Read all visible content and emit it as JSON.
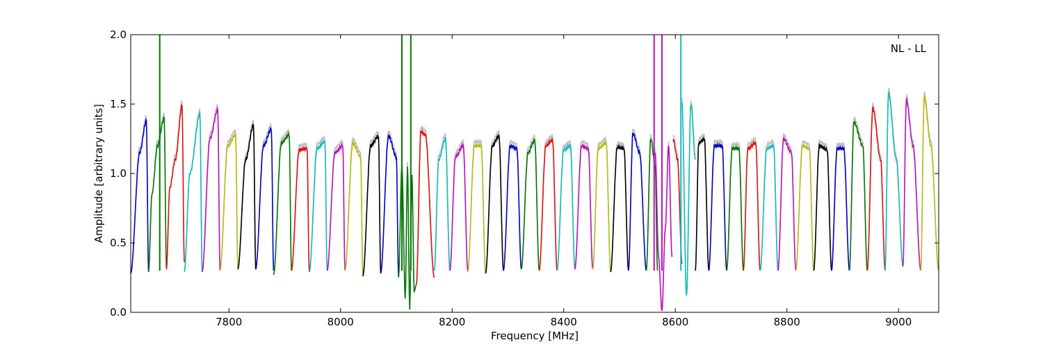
{
  "chart_data": {
    "type": "line",
    "title": "",
    "annotation": "NL - LL",
    "xlabel": "Frequency [MHz]",
    "ylabel": "Amplitude [arbitrary units]",
    "xlim": [
      7624,
      9072
    ],
    "ylim": [
      0.0,
      2.0
    ],
    "xticks": [
      7800,
      8000,
      8200,
      8400,
      8600,
      8800,
      9000
    ],
    "xtick_labels": [
      "7800",
      "8000",
      "8200",
      "8400",
      "8600",
      "8800",
      "9000"
    ],
    "yticks": [
      0.0,
      0.5,
      1.0,
      1.5,
      2.0
    ],
    "ytick_labels": [
      "0.0",
      "0.5",
      "1.0",
      "1.5",
      "2.0"
    ],
    "grid": false,
    "channel_width_mhz": 32,
    "band_start_mhz": 7624,
    "palette": [
      "#0000cc",
      "#007700",
      "#dd1111",
      "#11bbbb",
      "#bb11bb",
      "#bbbb11",
      "#000000"
    ],
    "background_color": "#c0c0c0",
    "series": [
      {
        "values": [
          [
            7624,
            0.28
          ],
          [
            7640,
            1.15
          ],
          [
            7652,
            1.38
          ],
          [
            7656,
            0.29
          ]
        ],
        "color": "#0000cc"
      },
      {
        "values": [
          [
            7656,
            0.29
          ],
          [
            7662,
            0.85
          ],
          [
            7672,
            1.2
          ],
          [
            7684,
            1.4
          ],
          [
            7688,
            0.31
          ]
        ],
        "color": "#007700"
      },
      {
        "values": [
          [
            7688,
            0.31
          ],
          [
            7694,
            0.9
          ],
          [
            7704,
            1.1
          ],
          [
            7716,
            1.49
          ],
          [
            7720,
            0.36
          ]
        ],
        "color": "#dd1111"
      },
      {
        "values": [
          [
            7720,
            0.29
          ],
          [
            7730,
            1.0
          ],
          [
            7748,
            1.43
          ],
          [
            7752,
            0.29
          ]
        ],
        "color": "#11bbbb"
      },
      {
        "values": [
          [
            7752,
            0.29
          ],
          [
            7766,
            1.25
          ],
          [
            7780,
            1.46
          ],
          [
            7784,
            0.3
          ]
        ],
        "color": "#bb11bb"
      },
      {
        "values": [
          [
            7784,
            0.3
          ],
          [
            7798,
            1.2
          ],
          [
            7812,
            1.28
          ],
          [
            7816,
            0.31
          ]
        ],
        "color": "#bbbb11"
      },
      {
        "values": [
          [
            7816,
            0.31
          ],
          [
            7830,
            1.1
          ],
          [
            7844,
            1.35
          ],
          [
            7848,
            0.31
          ]
        ],
        "color": "#000000"
      },
      {
        "values": [
          [
            7848,
            0.31
          ],
          [
            7862,
            1.2
          ],
          [
            7876,
            1.32
          ],
          [
            7880,
            0.3
          ]
        ],
        "color": "#0000cc"
      },
      {
        "values": [
          [
            7880,
            0.27
          ],
          [
            7894,
            1.22
          ],
          [
            7908,
            1.28
          ],
          [
            7912,
            0.3
          ]
        ],
        "color": "#007700"
      },
      {
        "values": [
          [
            7912,
            0.3
          ],
          [
            7926,
            1.17
          ],
          [
            7940,
            1.18
          ],
          [
            7944,
            0.29
          ]
        ],
        "color": "#dd1111"
      },
      {
        "values": [
          [
            7944,
            0.29
          ],
          [
            7958,
            1.18
          ],
          [
            7972,
            1.23
          ],
          [
            7976,
            0.3
          ]
        ],
        "color": "#11bbbb"
      },
      {
        "values": [
          [
            7976,
            0.3
          ],
          [
            7990,
            1.15
          ],
          [
            8004,
            1.2
          ],
          [
            8008,
            0.3
          ]
        ],
        "color": "#bb11bb"
      },
      {
        "values": [
          [
            8008,
            0.3
          ],
          [
            8022,
            1.22
          ],
          [
            8036,
            1.12
          ],
          [
            8040,
            0.26
          ]
        ],
        "color": "#bbbb11"
      },
      {
        "values": [
          [
            8040,
            0.26
          ],
          [
            8054,
            1.2
          ],
          [
            8068,
            1.27
          ],
          [
            8072,
            0.28
          ]
        ],
        "color": "#000000"
      },
      {
        "values": [
          [
            8072,
            0.28
          ],
          [
            8086,
            1.27
          ],
          [
            8100,
            1.12
          ],
          [
            8104,
            0.26
          ]
        ],
        "color": "#0000cc"
      },
      {
        "values": [
          [
            8104,
            0.25
          ],
          [
            8110,
            1.05
          ],
          [
            8116,
            0.1
          ],
          [
            8120,
            1.05
          ],
          [
            8124,
            0.02
          ],
          [
            8128,
            1.0
          ],
          [
            8132,
            0.15
          ],
          [
            8136,
            0.2
          ]
        ],
        "color": "#007700"
      },
      {
        "values": [
          [
            8136,
            0.2
          ],
          [
            8144,
            1.3
          ],
          [
            8152,
            1.28
          ],
          [
            8168,
            0.25
          ]
        ],
        "color": "#dd1111"
      },
      {
        "values": [
          [
            8168,
            0.3
          ],
          [
            8176,
            1.1
          ],
          [
            8188,
            1.25
          ],
          [
            8196,
            0.3
          ]
        ],
        "color": "#11bbbb"
      },
      {
        "values": [
          [
            8196,
            0.3
          ],
          [
            8206,
            1.12
          ],
          [
            8220,
            1.2
          ],
          [
            8228,
            0.3
          ]
        ],
        "color": "#bb11bb"
      },
      {
        "values": [
          [
            8228,
            0.29
          ],
          [
            8240,
            1.2
          ],
          [
            8252,
            1.2
          ],
          [
            8260,
            0.28
          ]
        ],
        "color": "#bbbb11"
      },
      {
        "values": [
          [
            8260,
            0.28
          ],
          [
            8272,
            1.2
          ],
          [
            8284,
            1.27
          ],
          [
            8292,
            0.3
          ]
        ],
        "color": "#000000"
      },
      {
        "values": [
          [
            8292,
            0.3
          ],
          [
            8304,
            1.2
          ],
          [
            8316,
            1.18
          ],
          [
            8324,
            0.31
          ]
        ],
        "color": "#0000cc"
      },
      {
        "values": [
          [
            8324,
            0.31
          ],
          [
            8336,
            1.15
          ],
          [
            8348,
            1.24
          ],
          [
            8356,
            0.3
          ]
        ],
        "color": "#007700"
      },
      {
        "values": [
          [
            8356,
            0.3
          ],
          [
            8368,
            1.2
          ],
          [
            8380,
            1.24
          ],
          [
            8388,
            0.3
          ]
        ],
        "color": "#dd1111"
      },
      {
        "values": [
          [
            8388,
            0.3
          ],
          [
            8400,
            1.17
          ],
          [
            8412,
            1.2
          ],
          [
            8420,
            0.31
          ]
        ],
        "color": "#11bbbb"
      },
      {
        "values": [
          [
            8420,
            0.31
          ],
          [
            8432,
            1.2
          ],
          [
            8444,
            1.18
          ],
          [
            8452,
            0.31
          ]
        ],
        "color": "#bb11bb"
      },
      {
        "values": [
          [
            8452,
            0.31
          ],
          [
            8462,
            1.18
          ],
          [
            8476,
            1.22
          ],
          [
            8484,
            0.29
          ]
        ],
        "color": "#bbbb11"
      },
      {
        "values": [
          [
            8484,
            0.29
          ],
          [
            8496,
            1.19
          ],
          [
            8508,
            1.18
          ],
          [
            8516,
            0.3
          ]
        ],
        "color": "#000000"
      },
      {
        "values": [
          [
            8516,
            0.3
          ],
          [
            8524,
            1.29
          ],
          [
            8536,
            1.15
          ],
          [
            8548,
            0.3
          ]
        ],
        "color": "#0000cc"
      },
      {
        "values": [
          [
            8548,
            0.3
          ],
          [
            8556,
            1.25
          ],
          [
            8564,
            1.05
          ],
          [
            8568,
            0.3
          ]
        ],
        "color": "#007700"
      },
      {
        "values": [
          [
            8564,
            1.15
          ],
          [
            8570,
            0.4
          ],
          [
            8576,
            0.01
          ],
          [
            8582,
            0.6
          ],
          [
            8588,
            1.2
          ],
          [
            8594,
            0.4
          ]
        ],
        "color": "#bb11bb"
      },
      {
        "values": [
          [
            8596,
            1.25
          ],
          [
            8604,
            1.1
          ],
          [
            8612,
            0.35
          ]
        ],
        "color": "#dd1111"
      },
      {
        "values": [
          [
            8612,
            1.5
          ],
          [
            8620,
            0.12
          ],
          [
            8628,
            1.5
          ],
          [
            8636,
            1.1
          ]
        ],
        "color": "#11bbbb"
      },
      {
        "values": [
          [
            8636,
            0.3
          ],
          [
            8642,
            1.22
          ],
          [
            8652,
            1.25
          ],
          [
            8660,
            0.3
          ]
        ],
        "color": "#000000"
      },
      {
        "values": [
          [
            8660,
            0.3
          ],
          [
            8670,
            1.2
          ],
          [
            8684,
            1.2
          ],
          [
            8692,
            0.3
          ]
        ],
        "color": "#0000cc"
      },
      {
        "values": [
          [
            8692,
            0.3
          ],
          [
            8702,
            1.18
          ],
          [
            8714,
            1.18
          ],
          [
            8722,
            0.3
          ]
        ],
        "color": "#007700"
      },
      {
        "values": [
          [
            8722,
            0.3
          ],
          [
            8730,
            1.18
          ],
          [
            8744,
            1.22
          ],
          [
            8752,
            0.3
          ]
        ],
        "color": "#dd1111"
      },
      {
        "values": [
          [
            8752,
            0.3
          ],
          [
            8764,
            1.18
          ],
          [
            8776,
            1.2
          ],
          [
            8784,
            0.3
          ]
        ],
        "color": "#11bbbb"
      },
      {
        "values": [
          [
            8784,
            0.3
          ],
          [
            8794,
            1.25
          ],
          [
            8808,
            1.15
          ],
          [
            8816,
            0.3
          ]
        ],
        "color": "#bb11bb"
      },
      {
        "values": [
          [
            8816,
            0.3
          ],
          [
            8828,
            1.2
          ],
          [
            8840,
            1.18
          ],
          [
            8848,
            0.3
          ]
        ],
        "color": "#bbbb11"
      },
      {
        "values": [
          [
            8848,
            0.3
          ],
          [
            8858,
            1.2
          ],
          [
            8872,
            1.17
          ],
          [
            8880,
            0.3
          ]
        ],
        "color": "#000000"
      },
      {
        "values": [
          [
            8880,
            0.3
          ],
          [
            8890,
            1.18
          ],
          [
            8902,
            1.18
          ],
          [
            8912,
            0.3
          ]
        ],
        "color": "#0000cc"
      },
      {
        "values": [
          [
            8912,
            0.3
          ],
          [
            8920,
            1.37
          ],
          [
            8936,
            1.2
          ],
          [
            8944,
            0.3
          ]
        ],
        "color": "#007700"
      },
      {
        "values": [
          [
            8944,
            0.3
          ],
          [
            8954,
            1.47
          ],
          [
            8968,
            1.1
          ],
          [
            8976,
            0.3
          ]
        ],
        "color": "#dd1111"
      },
      {
        "values": [
          [
            8976,
            0.3
          ],
          [
            8982,
            1.58
          ],
          [
            8996,
            1.1
          ],
          [
            9008,
            0.33
          ]
        ],
        "color": "#11bbbb"
      },
      {
        "values": [
          [
            9008,
            0.33
          ],
          [
            9014,
            1.53
          ],
          [
            9026,
            1.2
          ],
          [
            9040,
            0.3
          ]
        ],
        "color": "#bb11bb"
      },
      {
        "values": [
          [
            9040,
            0.3
          ],
          [
            9046,
            1.55
          ],
          [
            9058,
            1.2
          ],
          [
            9072,
            0.3
          ]
        ],
        "color": "#bbbb11"
      }
    ],
    "spikes": [
      {
        "x": 7676,
        "color": "#007700"
      },
      {
        "x": 8110,
        "color": "#007700"
      },
      {
        "x": 8126,
        "color": "#007700"
      },
      {
        "x": 8562,
        "color": "#bb11bb"
      },
      {
        "x": 8576,
        "color": "#bb11bb"
      },
      {
        "x": 8610,
        "color": "#11bbbb"
      }
    ]
  }
}
